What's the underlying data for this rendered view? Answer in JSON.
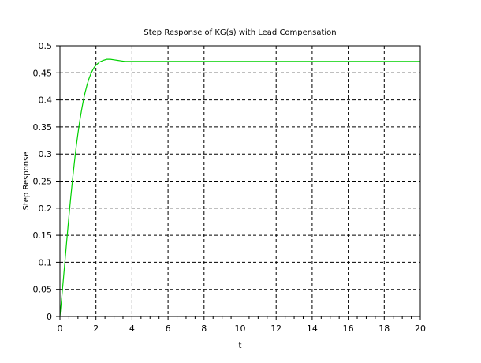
{
  "chart_data": {
    "type": "line",
    "title": "Step Response of KG(s) with Lead Compensation",
    "xlabel": "t",
    "ylabel": "Step Response",
    "xlim": [
      0,
      20
    ],
    "ylim": [
      0,
      0.5
    ],
    "grid": true,
    "grid_style": "dashed",
    "x_ticks": [
      "0",
      "2",
      "4",
      "6",
      "8",
      "10",
      "12",
      "14",
      "16",
      "18",
      "20"
    ],
    "y_ticks": [
      "0",
      "0.05",
      "0.1",
      "0.15",
      "0.2",
      "0.25",
      "0.3",
      "0.35",
      "0.4",
      "0.45",
      "0.5"
    ],
    "series": [
      {
        "color": "#00d000",
        "x": [
          0,
          0.1,
          0.2,
          0.3,
          0.4,
          0.5,
          0.6,
          0.7,
          0.8,
          0.9,
          1.0,
          1.1,
          1.2,
          1.3,
          1.4,
          1.5,
          1.6,
          1.7,
          1.8,
          1.9,
          2.0,
          2.2,
          2.4,
          2.6,
          2.8,
          3.0,
          3.2,
          3.4,
          3.6,
          3.8,
          4.0,
          5,
          6,
          8,
          10,
          12,
          14,
          16,
          18,
          20
        ],
        "y": [
          0,
          0.035,
          0.072,
          0.11,
          0.148,
          0.185,
          0.22,
          0.253,
          0.284,
          0.313,
          0.338,
          0.361,
          0.381,
          0.399,
          0.414,
          0.427,
          0.438,
          0.447,
          0.454,
          0.46,
          0.464,
          0.47,
          0.473,
          0.475,
          0.475,
          0.474,
          0.473,
          0.472,
          0.471,
          0.471,
          0.471,
          0.471,
          0.471,
          0.471,
          0.471,
          0.471,
          0.471,
          0.471,
          0.471,
          0.471
        ]
      }
    ]
  }
}
